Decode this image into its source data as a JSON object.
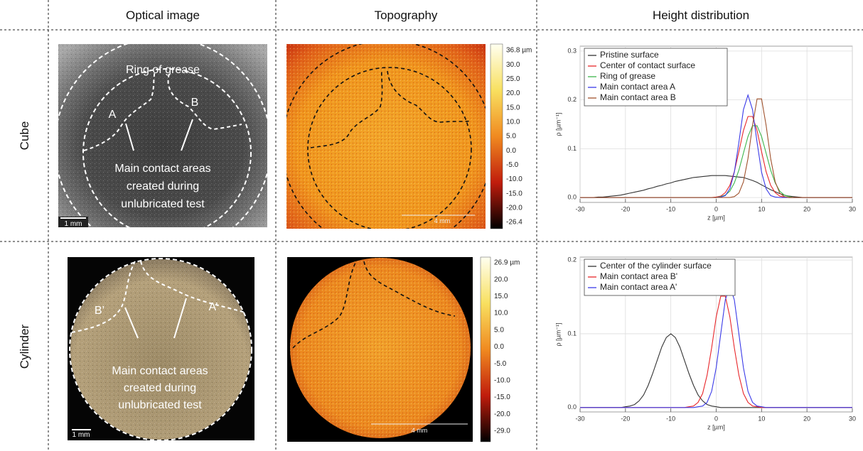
{
  "table": {
    "headers": [
      "Optical image",
      "Topography",
      "Height distribution"
    ],
    "row_labels": [
      "Cube",
      "Cylinder"
    ]
  },
  "cube": {
    "optical": {
      "labels": [
        "Ring of grease",
        "A",
        "B"
      ],
      "annotation": [
        "Main contact areas",
        "created during",
        "unlubricated test"
      ],
      "scale_bar": "1 mm"
    },
    "topography": {
      "colorbar": [
        "36.8 µm",
        "30.0",
        "25.0",
        "20.0",
        "15.0",
        "10.0",
        "5.0",
        "0.0",
        "-5.0",
        "-10.0",
        "-15.0",
        "-20.0",
        "-26.4"
      ],
      "scale_bar": "4 mm"
    }
  },
  "cylinder": {
    "optical": {
      "labels": [
        "B’",
        "A’"
      ],
      "annotation": [
        "Main contact areas",
        "created during",
        "unlubricated test"
      ],
      "scale_bar": "1 mm"
    },
    "topography": {
      "colorbar": [
        "26.9 µm",
        "20.0",
        "15.0",
        "10.0",
        "5.0",
        "0.0",
        "-5.0",
        "-10.0",
        "-15.0",
        "-20.0",
        "-29.0"
      ],
      "scale_bar": "4 mm"
    }
  },
  "chart_data": [
    {
      "type": "line",
      "x_label": "z [µm]",
      "y_label": "ρ [µm⁻¹]",
      "x": [
        -30,
        -29,
        -28,
        -27,
        -26,
        -25,
        -24,
        -23,
        -22,
        -21,
        -20,
        -19,
        -18,
        -17,
        -16,
        -15,
        -14,
        -13,
        -12,
        -11,
        -10,
        -9,
        -8,
        -7,
        -6,
        -5,
        -4,
        -3,
        -2,
        -1,
        0,
        1,
        2,
        3,
        4,
        5,
        6,
        7,
        8,
        9,
        10,
        11,
        12,
        13,
        14,
        15,
        16,
        17,
        18,
        19,
        20,
        21,
        22,
        23,
        24,
        25,
        26,
        27,
        28,
        29,
        30
      ],
      "xlim": [
        -30,
        30
      ],
      "xticks": [
        -30,
        -20,
        -10,
        0,
        10,
        20,
        30
      ],
      "ylim": [
        -0.01,
        0.31
      ],
      "yticks": [
        {
          "value": 0,
          "label": "0.0"
        },
        0.1,
        0.2,
        0.3
      ],
      "grid": true,
      "series": [
        {
          "name": "Pristine surface",
          "color": "#333333",
          "values": [
            0,
            0,
            0,
            0,
            0.001,
            0.001,
            0.002,
            0.003,
            0.004,
            0.005,
            0.007,
            0.009,
            0.011,
            0.013,
            0.015,
            0.018,
            0.02,
            0.023,
            0.025,
            0.028,
            0.03,
            0.033,
            0.035,
            0.037,
            0.039,
            0.041,
            0.042,
            0.043,
            0.044,
            0.045,
            0.045,
            0.045,
            0.045,
            0.044,
            0.043,
            0.042,
            0.041,
            0.038,
            0.035,
            0.031,
            0.026,
            0.021,
            0.016,
            0.012,
            0.008,
            0.005,
            0.003,
            0.002,
            0.001,
            0,
            0,
            0,
            0,
            0,
            0,
            0,
            0,
            0,
            0,
            0,
            0
          ]
        },
        {
          "name": "Center of contact surface",
          "color": "#e8262a",
          "values": [
            0,
            0,
            0,
            0,
            0,
            0,
            0,
            0,
            0,
            0,
            0,
            0,
            0,
            0,
            0,
            0,
            0,
            0,
            0,
            0,
            0,
            0,
            0,
            0,
            0,
            0,
            0,
            0,
            0,
            0,
            0.001,
            0.003,
            0.01,
            0.025,
            0.053,
            0.094,
            0.137,
            0.166,
            0.166,
            0.137,
            0.094,
            0.053,
            0.025,
            0.01,
            0.003,
            0.001,
            0,
            0,
            0,
            0,
            0,
            0,
            0,
            0,
            0,
            0,
            0,
            0,
            0,
            0,
            0
          ]
        },
        {
          "name": "Ring of grease",
          "color": "#3cb54a",
          "values": [
            0,
            0,
            0,
            0,
            0,
            0,
            0,
            0,
            0,
            0,
            0,
            0,
            0,
            0,
            0,
            0,
            0,
            0,
            0,
            0,
            0,
            0,
            0,
            0,
            0,
            0,
            0,
            0,
            0,
            0,
            0,
            0.002,
            0.005,
            0.013,
            0.03,
            0.056,
            0.091,
            0.125,
            0.147,
            0.147,
            0.125,
            0.091,
            0.056,
            0.03,
            0.013,
            0.005,
            0.002,
            0,
            0,
            0,
            0,
            0,
            0,
            0,
            0,
            0,
            0,
            0,
            0,
            0,
            0
          ]
        },
        {
          "name": "Main contact area A",
          "color": "#3a3ae8",
          "values": [
            0,
            0,
            0,
            0,
            0,
            0,
            0,
            0,
            0,
            0,
            0,
            0,
            0,
            0,
            0,
            0,
            0,
            0,
            0,
            0,
            0,
            0,
            0,
            0,
            0,
            0,
            0,
            0,
            0,
            0,
            0,
            0.001,
            0.004,
            0.018,
            0.052,
            0.113,
            0.18,
            0.21,
            0.18,
            0.113,
            0.052,
            0.018,
            0.004,
            0.001,
            0,
            0,
            0,
            0,
            0,
            0,
            0,
            0,
            0,
            0,
            0,
            0,
            0,
            0,
            0,
            0,
            0
          ]
        },
        {
          "name": "Main contact area B",
          "color": "#a0522d",
          "values": [
            0,
            0,
            0,
            0,
            0,
            0,
            0,
            0,
            0,
            0,
            0,
            0,
            0,
            0,
            0,
            0,
            0,
            0,
            0,
            0,
            0,
            0,
            0,
            0,
            0,
            0,
            0,
            0,
            0,
            0,
            0,
            0,
            0,
            0,
            0.002,
            0.009,
            0.032,
            0.08,
            0.148,
            0.202,
            0.202,
            0.148,
            0.08,
            0.032,
            0.009,
            0.002,
            0,
            0,
            0,
            0,
            0,
            0,
            0,
            0,
            0,
            0,
            0,
            0,
            0,
            0,
            0
          ]
        }
      ]
    },
    {
      "type": "line",
      "x_label": "z [µm]",
      "y_label": "ρ [µm⁻¹]",
      "x": [
        -30,
        -29,
        -28,
        -27,
        -26,
        -25,
        -24,
        -23,
        -22,
        -21,
        -20,
        -19,
        -18,
        -17,
        -16,
        -15,
        -14,
        -13,
        -12,
        -11,
        -10,
        -9,
        -8,
        -7,
        -6,
        -5,
        -4,
        -3,
        -2,
        -1,
        0,
        1,
        2,
        3,
        4,
        5,
        6,
        7,
        8,
        9,
        10,
        11,
        12,
        13,
        14,
        15,
        16,
        17,
        18,
        19,
        20,
        21,
        22,
        23,
        24,
        25,
        26,
        27,
        28,
        29,
        30
      ],
      "xlim": [
        -30,
        30
      ],
      "xticks": [
        -30,
        -20,
        -10,
        0,
        10,
        20,
        30
      ],
      "ylim": [
        -0.006,
        0.204
      ],
      "yticks": [
        {
          "value": 0,
          "label": "0.0"
        },
        0.1,
        0.2
      ],
      "grid": true,
      "series": [
        {
          "name": "Center of the cylinder surface",
          "color": "#333333",
          "values": [
            0,
            0,
            0,
            0,
            0,
            0,
            0,
            0,
            0,
            0,
            0.001,
            0.002,
            0.004,
            0.009,
            0.017,
            0.03,
            0.046,
            0.064,
            0.082,
            0.095,
            0.1,
            0.095,
            0.082,
            0.064,
            0.046,
            0.03,
            0.017,
            0.009,
            0.004,
            0.002,
            0.001,
            0,
            0,
            0,
            0,
            0,
            0,
            0,
            0,
            0,
            0,
            0,
            0,
            0,
            0,
            0,
            0,
            0,
            0,
            0,
            0,
            0,
            0,
            0,
            0,
            0,
            0,
            0,
            0,
            0,
            0
          ]
        },
        {
          "name": "Main contact area B'",
          "color": "#e8262a",
          "values": [
            0,
            0,
            0,
            0,
            0,
            0,
            0,
            0,
            0,
            0,
            0,
            0,
            0,
            0,
            0,
            0,
            0,
            0,
            0,
            0,
            0,
            0,
            0,
            0,
            0.001,
            0.002,
            0.007,
            0.019,
            0.044,
            0.081,
            0.123,
            0.151,
            0.151,
            0.123,
            0.081,
            0.044,
            0.019,
            0.007,
            0.002,
            0.001,
            0,
            0,
            0,
            0,
            0,
            0,
            0,
            0,
            0,
            0,
            0,
            0,
            0,
            0,
            0,
            0,
            0,
            0,
            0,
            0,
            0
          ]
        },
        {
          "name": "Main contact area A'",
          "color": "#3a3ae8",
          "values": [
            0,
            0,
            0,
            0,
            0,
            0,
            0,
            0,
            0,
            0,
            0,
            0,
            0,
            0,
            0,
            0,
            0,
            0,
            0,
            0,
            0,
            0,
            0,
            0,
            0,
            0,
            0.001,
            0.002,
            0.007,
            0.022,
            0.054,
            0.1,
            0.146,
            0.165,
            0.146,
            0.1,
            0.054,
            0.022,
            0.007,
            0.002,
            0.001,
            0,
            0,
            0,
            0,
            0,
            0,
            0,
            0,
            0,
            0,
            0,
            0,
            0,
            0,
            0,
            0,
            0,
            0,
            0,
            0
          ]
        }
      ]
    }
  ]
}
